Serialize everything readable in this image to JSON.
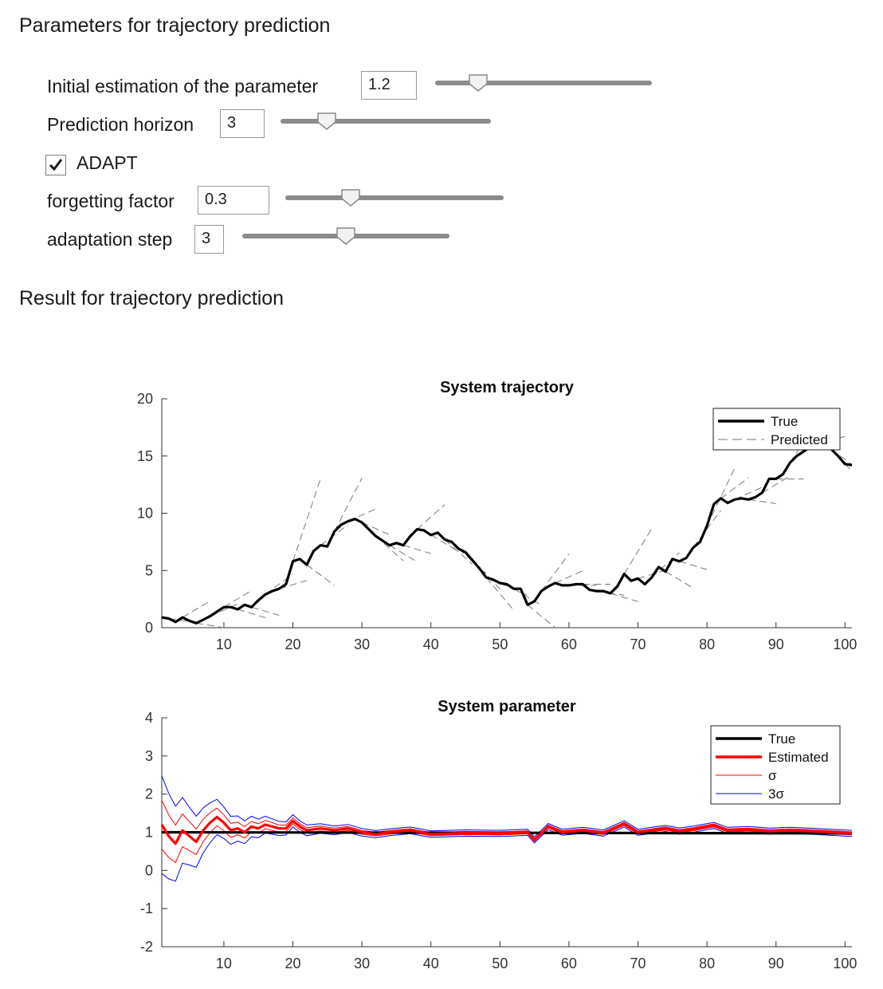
{
  "params_section": {
    "title": "Parameters for trajectory prediction"
  },
  "controls": {
    "initial_estimation": {
      "label": "Initial estimation of the parameter",
      "value": "1.2",
      "slider_fraction": 0.2
    },
    "prediction_horizon": {
      "label": "Prediction horizon",
      "value": "3",
      "slider_fraction": 0.22
    },
    "adapt": {
      "label": "ADAPT",
      "checked": true
    },
    "forgetting_factor": {
      "label": "forgetting factor",
      "value": "0.3",
      "slider_fraction": 0.3
    },
    "adaptation_step": {
      "label": "adaptation step",
      "value": "3",
      "slider_fraction": 0.5
    }
  },
  "results_section": {
    "title": "Result for trajectory prediction"
  },
  "chart_data": [
    {
      "type": "line",
      "title": "System trajectory",
      "xlim": [
        1,
        101
      ],
      "ylim": [
        0,
        20
      ],
      "xticks": [
        10,
        20,
        30,
        40,
        50,
        60,
        70,
        80,
        90,
        100
      ],
      "yticks": [
        0,
        5,
        10,
        15,
        20
      ],
      "legend_position": "top-right",
      "series": [
        {
          "name": "True",
          "color": "#000000",
          "style": "solid",
          "x": [
            1,
            2,
            3,
            4,
            5,
            6,
            7,
            8,
            9,
            10,
            11,
            12,
            13,
            14,
            15,
            16,
            17,
            18,
            19,
            20,
            21,
            22,
            23,
            24,
            25,
            26,
            27,
            28,
            29,
            30,
            31,
            32,
            33,
            34,
            35,
            36,
            37,
            38,
            39,
            40,
            41,
            42,
            43,
            44,
            45,
            46,
            47,
            48,
            49,
            50,
            51,
            52,
            53,
            54,
            55,
            56,
            57,
            58,
            59,
            60,
            61,
            62,
            63,
            64,
            65,
            66,
            67,
            68,
            69,
            70,
            71,
            72,
            73,
            74,
            75,
            76,
            77,
            78,
            79,
            80,
            81,
            82,
            83,
            84,
            85,
            86,
            87,
            88,
            89,
            90,
            91,
            92,
            93,
            94,
            95,
            96,
            97,
            98,
            99,
            100,
            101
          ],
          "y": [
            0.9,
            0.8,
            0.5,
            0.9,
            0.6,
            0.4,
            0.7,
            1.0,
            1.4,
            1.8,
            1.8,
            1.6,
            2.0,
            1.8,
            2.4,
            2.9,
            3.2,
            3.4,
            3.8,
            5.8,
            6.0,
            5.5,
            6.7,
            7.2,
            7.1,
            8.4,
            9.0,
            9.3,
            9.5,
            9.2,
            8.6,
            8.0,
            7.6,
            7.2,
            7.4,
            7.2,
            8.0,
            8.6,
            8.5,
            8.1,
            8.3,
            7.7,
            7.5,
            6.9,
            6.6,
            5.9,
            5.2,
            4.4,
            4.2,
            3.9,
            3.8,
            3.4,
            3.4,
            2.0,
            2.3,
            3.2,
            3.6,
            3.9,
            3.7,
            3.7,
            3.8,
            3.8,
            3.3,
            3.2,
            3.2,
            3.0,
            3.6,
            4.7,
            4.1,
            4.3,
            3.8,
            4.4,
            5.3,
            4.9,
            6.0,
            5.8,
            6.1,
            7.0,
            7.5,
            8.9,
            10.8,
            11.3,
            10.9,
            11.2,
            11.3,
            11.2,
            11.4,
            11.8,
            13.0,
            13.0,
            13.4,
            14.4,
            15.0,
            15.4,
            15.8,
            16.0,
            16.1,
            15.6,
            15.0,
            14.3,
            14.2
          ]
        },
        {
          "name": "Predicted",
          "color": "#7a7a7a",
          "style": "dashed"
        }
      ]
    },
    {
      "type": "line",
      "title": "System parameter",
      "xlim": [
        1,
        101
      ],
      "ylim": [
        -2,
        4
      ],
      "xticks": [
        10,
        20,
        30,
        40,
        50,
        60,
        70,
        80,
        90,
        100
      ],
      "yticks": [
        -2,
        -1,
        0,
        1,
        2,
        3,
        4
      ],
      "legend_position": "top-right",
      "series": [
        {
          "name": "True",
          "color": "#000000",
          "x": [
            1,
            101
          ],
          "y": [
            1.0,
            0.97
          ]
        },
        {
          "name": "Estimated",
          "color": "#ff0000",
          "x": [
            1,
            2,
            3,
            4,
            5,
            6,
            7,
            8,
            9,
            10,
            11,
            12,
            13,
            14,
            15,
            16,
            17,
            18,
            19,
            20,
            21,
            22,
            24,
            26,
            28,
            30,
            32,
            34,
            37,
            40,
            45,
            50,
            54,
            55,
            57,
            59,
            62,
            65,
            68,
            70,
            72,
            74,
            76,
            78,
            81,
            83,
            86,
            89,
            92,
            96,
            101
          ],
          "y": [
            1.2,
            0.9,
            0.7,
            1.05,
            0.9,
            0.75,
            1.05,
            1.25,
            1.4,
            1.25,
            1.05,
            1.1,
            1.0,
            1.15,
            1.1,
            1.2,
            1.15,
            1.1,
            1.1,
            1.3,
            1.15,
            1.05,
            1.1,
            1.05,
            1.1,
            1.0,
            0.95,
            1.0,
            1.05,
            0.95,
            0.98,
            0.97,
            1.0,
            0.8,
            1.15,
            1.0,
            1.05,
            0.98,
            1.22,
            1.0,
            1.05,
            1.1,
            1.03,
            1.08,
            1.18,
            1.05,
            1.07,
            1.03,
            1.05,
            1.02,
            0.97
          ]
        },
        {
          "name": "σ",
          "color": "#ff0000"
        },
        {
          "name": "3σ",
          "color": "#0000ff"
        }
      ]
    }
  ]
}
